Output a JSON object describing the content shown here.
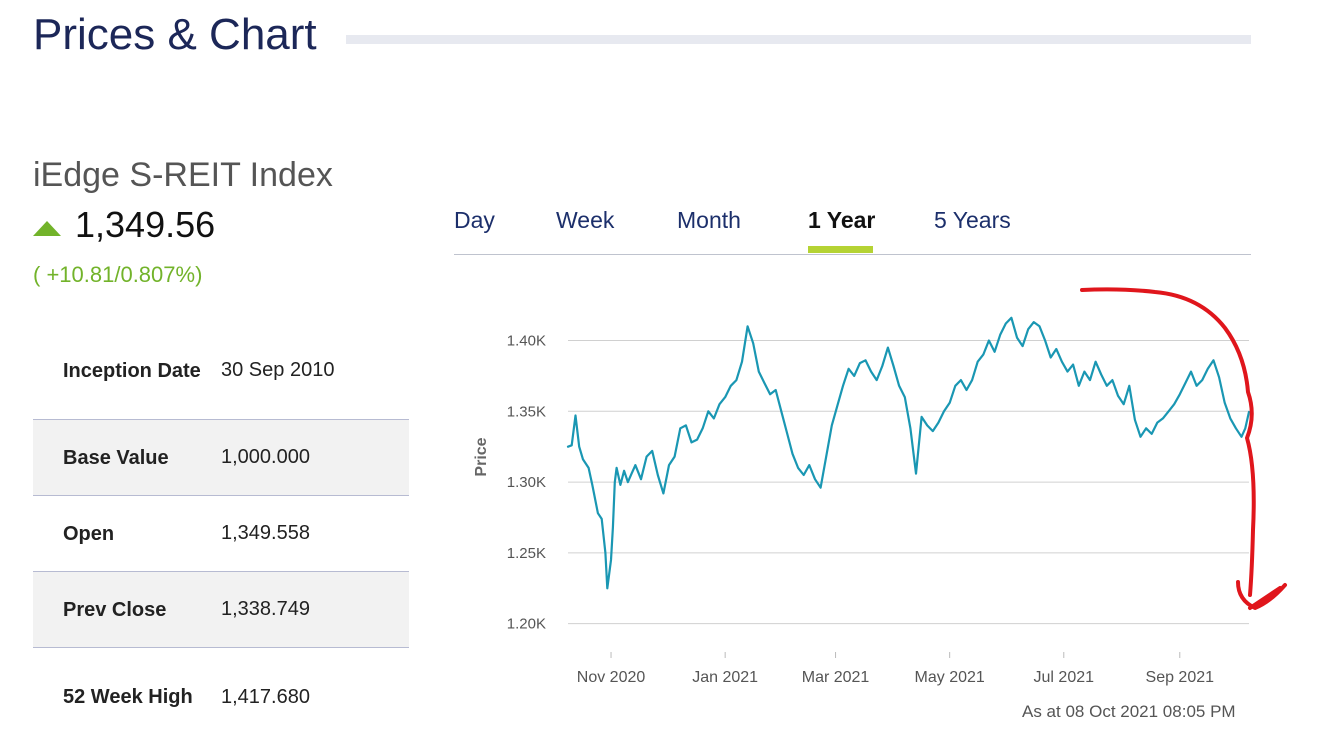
{
  "page": {
    "section_title": "Prices & Chart",
    "index_name": "iEdge S-REIT Index",
    "price": "1,349.56",
    "change": "( +10.81/0.807%)",
    "as_at": "As at 08 Oct 2021 08:05 PM"
  },
  "colors": {
    "accent_green": "#72b32a",
    "line": "#1a97b3",
    "navy": "#1c2758",
    "tab_underline": "#b5d334",
    "annotation": "#e0161c"
  },
  "icons": {
    "change_direction": "triangle-up-icon"
  },
  "stats": [
    {
      "label": "Inception Date",
      "value": "30 Sep 2010"
    },
    {
      "label": "Base Value",
      "value": "1,000.000"
    },
    {
      "label": "Open",
      "value": "1,349.558"
    },
    {
      "label": "Prev Close",
      "value": "1,338.749"
    },
    {
      "label": "52 Week High",
      "value": "1,417.680"
    }
  ],
  "tabs": [
    {
      "label": "Day",
      "active": false
    },
    {
      "label": "Week",
      "active": false
    },
    {
      "label": "Month",
      "active": false
    },
    {
      "label": "1 Year",
      "active": true
    },
    {
      "label": "5 Years",
      "active": false
    }
  ],
  "chart_data": {
    "type": "line",
    "ylabel": "Price",
    "xlabel": "",
    "title": "",
    "ylim": [
      1180,
      1430
    ],
    "yticks": [
      1200,
      1250,
      1300,
      1350,
      1400
    ],
    "ytick_labels": [
      "1.20K",
      "1.25K",
      "1.30K",
      "1.35K",
      "1.40K"
    ],
    "xlim": [
      "2020-10-09",
      "2021-10-08"
    ],
    "xticks": [
      "2020-11-01",
      "2021-01-01",
      "2021-03-01",
      "2021-05-01",
      "2021-07-01",
      "2021-09-01"
    ],
    "xtick_labels": [
      "Nov 2020",
      "Jan 2021",
      "Mar 2021",
      "May 2021",
      "Jul 2021",
      "Sep 2021"
    ],
    "grid": true,
    "series": [
      {
        "x": [
          "2020-10-09",
          "2020-10-11",
          "2020-10-13",
          "2020-10-15",
          "2020-10-17",
          "2020-10-20",
          "2020-10-22",
          "2020-10-25",
          "2020-10-27",
          "2020-10-29",
          "2020-10-30",
          "2020-11-01",
          "2020-11-02",
          "2020-11-03",
          "2020-11-04",
          "2020-11-06",
          "2020-11-08",
          "2020-11-10",
          "2020-11-12",
          "2020-11-14",
          "2020-11-17",
          "2020-11-20",
          "2020-11-23",
          "2020-11-26",
          "2020-11-29",
          "2020-12-02",
          "2020-12-05",
          "2020-12-08",
          "2020-12-11",
          "2020-12-14",
          "2020-12-17",
          "2020-12-20",
          "2020-12-23",
          "2020-12-26",
          "2020-12-29",
          "2021-01-01",
          "2021-01-04",
          "2021-01-07",
          "2021-01-10",
          "2021-01-13",
          "2021-01-16",
          "2021-01-19",
          "2021-01-22",
          "2021-01-25",
          "2021-01-28",
          "2021-01-31",
          "2021-02-03",
          "2021-02-06",
          "2021-02-09",
          "2021-02-12",
          "2021-02-15",
          "2021-02-18",
          "2021-02-21",
          "2021-02-24",
          "2021-02-27",
          "2021-03-02",
          "2021-03-05",
          "2021-03-08",
          "2021-03-11",
          "2021-03-14",
          "2021-03-17",
          "2021-03-20",
          "2021-03-23",
          "2021-03-26",
          "2021-03-29",
          "2021-04-01",
          "2021-04-04",
          "2021-04-07",
          "2021-04-10",
          "2021-04-13",
          "2021-04-16",
          "2021-04-19",
          "2021-04-22",
          "2021-04-25",
          "2021-04-28",
          "2021-05-01",
          "2021-05-04",
          "2021-05-07",
          "2021-05-10",
          "2021-05-13",
          "2021-05-16",
          "2021-05-19",
          "2021-05-22",
          "2021-05-25",
          "2021-05-28",
          "2021-05-31",
          "2021-06-03",
          "2021-06-06",
          "2021-06-09",
          "2021-06-12",
          "2021-06-15",
          "2021-06-18",
          "2021-06-21",
          "2021-06-24",
          "2021-06-27",
          "2021-06-30",
          "2021-07-03",
          "2021-07-06",
          "2021-07-09",
          "2021-07-12",
          "2021-07-15",
          "2021-07-18",
          "2021-07-21",
          "2021-07-24",
          "2021-07-27",
          "2021-07-30",
          "2021-08-02",
          "2021-08-05",
          "2021-08-08",
          "2021-08-11",
          "2021-08-14",
          "2021-08-17",
          "2021-08-20",
          "2021-08-23",
          "2021-08-26",
          "2021-08-29",
          "2021-09-01",
          "2021-09-04",
          "2021-09-07",
          "2021-09-10",
          "2021-09-13",
          "2021-09-16",
          "2021-09-19",
          "2021-09-22",
          "2021-09-25",
          "2021-09-28",
          "2021-10-01",
          "2021-10-04",
          "2021-10-06",
          "2021-10-08"
        ],
        "values": [
          1325,
          1326,
          1347,
          1325,
          1316,
          1310,
          1298,
          1278,
          1274,
          1250,
          1225,
          1245,
          1268,
          1300,
          1310,
          1298,
          1308,
          1300,
          1306,
          1312,
          1302,
          1318,
          1322,
          1305,
          1292,
          1312,
          1318,
          1338,
          1340,
          1328,
          1330,
          1338,
          1350,
          1345,
          1355,
          1360,
          1368,
          1372,
          1385,
          1410,
          1398,
          1378,
          1370,
          1362,
          1365,
          1350,
          1335,
          1320,
          1310,
          1305,
          1312,
          1302,
          1296,
          1318,
          1340,
          1354,
          1368,
          1380,
          1375,
          1384,
          1386,
          1378,
          1372,
          1382,
          1395,
          1382,
          1368,
          1360,
          1338,
          1306,
          1346,
          1340,
          1336,
          1342,
          1350,
          1356,
          1368,
          1372,
          1365,
          1372,
          1385,
          1390,
          1400,
          1392,
          1404,
          1412,
          1416,
          1402,
          1396,
          1408,
          1413,
          1410,
          1400,
          1388,
          1394,
          1385,
          1378,
          1383,
          1368,
          1378,
          1372,
          1385,
          1376,
          1368,
          1372,
          1361,
          1355,
          1368,
          1344,
          1332,
          1338,
          1334,
          1342,
          1345,
          1350,
          1355,
          1362,
          1370,
          1378,
          1368,
          1372,
          1380,
          1386,
          1374,
          1356,
          1345,
          1338,
          1332,
          1338,
          1349.56
        ]
      }
    ]
  }
}
